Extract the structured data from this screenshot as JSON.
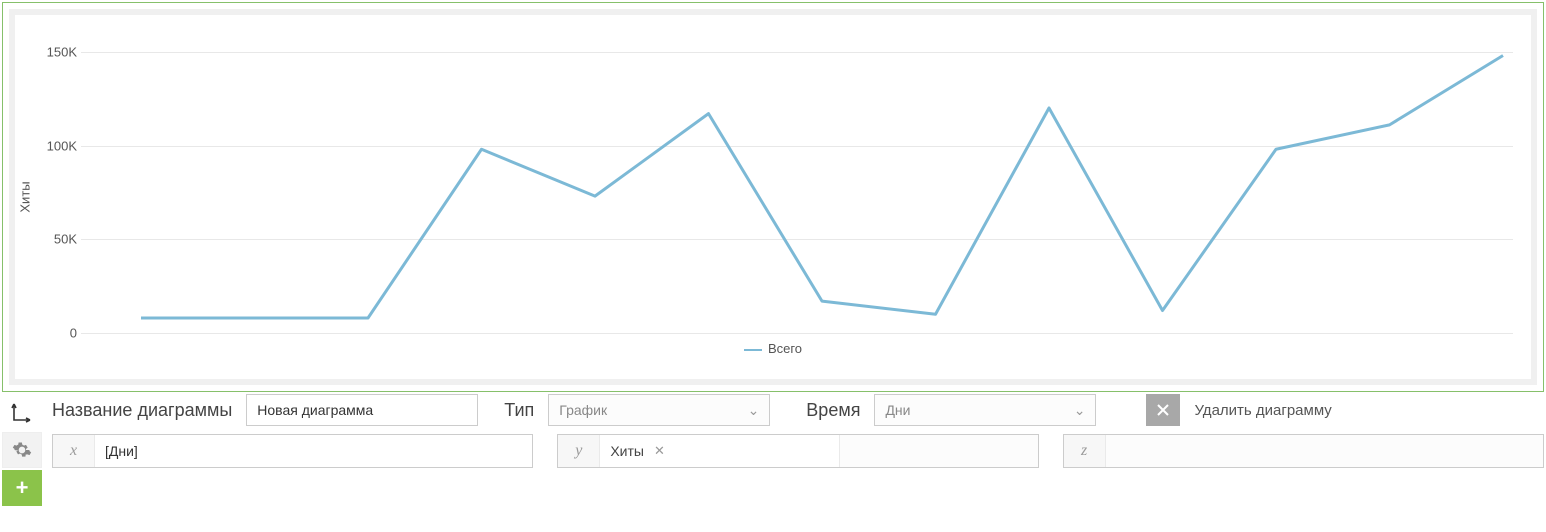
{
  "chart": {
    "type": "line",
    "y_axis_title": "Хиты",
    "y_ticks": [
      0,
      "50K",
      "100K",
      "150K"
    ],
    "ylim": [
      0,
      160000
    ],
    "grid_color": "#e8e8e8",
    "background_color": "#ffffff",
    "outer_border_color": "#86c06a",
    "series": [
      {
        "name": "Всего",
        "color": "#7cb9d6",
        "line_width": 3,
        "values": [
          8000,
          8000,
          8000,
          98000,
          73000,
          117000,
          17000,
          10000,
          120000,
          12000,
          98000,
          111000,
          148000
        ]
      }
    ],
    "legend_label": "Всего"
  },
  "controls": {
    "name_label": "Название диаграммы",
    "name_value": "Новая диаграмма",
    "type_label": "Тип",
    "type_value": "График",
    "time_label": "Время",
    "time_value": "Дни",
    "delete_label": "Удалить диаграмму",
    "axes": {
      "x": {
        "letter": "x",
        "value": "[Дни]"
      },
      "y": {
        "letter": "y",
        "tag": "Хиты"
      },
      "z": {
        "letter": "z"
      }
    }
  }
}
